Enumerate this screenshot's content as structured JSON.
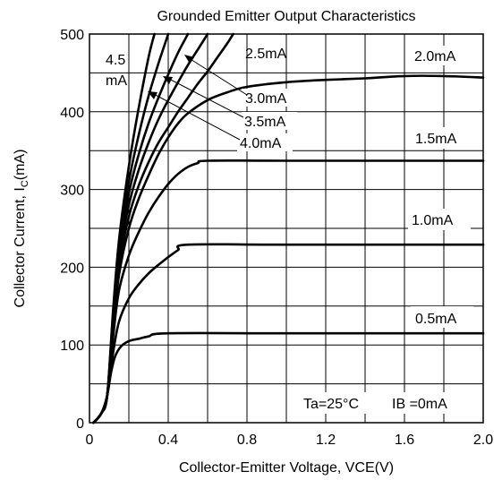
{
  "chart_data": {
    "type": "line",
    "title": "Grounded Emitter Output Characteristics",
    "xlabel": "Collector-Emitter Voltage, VCE(V)",
    "ylabel_main": "Collector Current, I",
    "ylabel_sub": "C",
    "ylabel_unit": "(mA)",
    "xlim": [
      0,
      2.0
    ],
    "ylim": [
      0,
      500
    ],
    "xticks": [
      0,
      0.4,
      0.8,
      1.2,
      1.6,
      2.0
    ],
    "xtick_labels": [
      "0",
      "0.4",
      "0.8",
      "1.2",
      "1.6",
      "2.0"
    ],
    "yticks": [
      0,
      100,
      200,
      300,
      400,
      500
    ],
    "ytick_labels": [
      "0",
      "100",
      "200",
      "300",
      "400",
      "500"
    ],
    "grid": true,
    "annotations": [
      "Ta=25°C",
      "IB =0mA"
    ],
    "series": [
      {
        "name": "0.5mA",
        "x": [
          0.02,
          0.06,
          0.09,
          0.11,
          0.13,
          0.16,
          0.2,
          0.25,
          0.3,
          0.4,
          1.0,
          2.0
        ],
        "y": [
          0,
          12,
          35,
          65,
          85,
          98,
          105,
          108,
          111,
          115,
          115,
          115
        ]
      },
      {
        "name": "1.0mA",
        "x": [
          0.02,
          0.06,
          0.09,
          0.12,
          0.15,
          0.2,
          0.25,
          0.3,
          0.35,
          0.4,
          0.45,
          0.5,
          1.0,
          2.0
        ],
        "y": [
          0,
          12,
          35,
          90,
          130,
          160,
          178,
          192,
          203,
          213,
          222,
          229,
          229,
          229
        ]
      },
      {
        "name": "1.5mA",
        "x": [
          0.02,
          0.06,
          0.09,
          0.12,
          0.15,
          0.2,
          0.25,
          0.3,
          0.35,
          0.4,
          0.45,
          0.5,
          0.55,
          0.6,
          1.0,
          2.0
        ],
        "y": [
          0,
          12,
          35,
          110,
          170,
          215,
          245,
          270,
          290,
          307,
          320,
          329,
          334,
          337,
          337,
          337
        ]
      },
      {
        "name": "2.0mA",
        "x": [
          0.02,
          0.06,
          0.09,
          0.12,
          0.15,
          0.2,
          0.25,
          0.3,
          0.35,
          0.4,
          0.45,
          0.5,
          0.6,
          0.7,
          0.8,
          1.0,
          1.2,
          1.4,
          1.6,
          1.8,
          2.0
        ],
        "y": [
          0,
          12,
          35,
          120,
          190,
          250,
          288,
          318,
          345,
          367,
          385,
          398,
          415,
          425,
          432,
          438,
          441,
          443,
          446,
          446,
          444
        ]
      },
      {
        "name": "2.5mA",
        "x": [
          0.02,
          0.06,
          0.09,
          0.12,
          0.15,
          0.2,
          0.25,
          0.3,
          0.35,
          0.4,
          0.45,
          0.5,
          0.55,
          0.6,
          0.65,
          0.7,
          0.73
        ],
        "y": [
          0,
          12,
          35,
          125,
          200,
          265,
          305,
          335,
          360,
          380,
          400,
          418,
          436,
          452,
          470,
          488,
          500
        ]
      },
      {
        "name": "3.0mA",
        "x": [
          0.02,
          0.06,
          0.09,
          0.12,
          0.15,
          0.2,
          0.25,
          0.3,
          0.35,
          0.4,
          0.45,
          0.5,
          0.55,
          0.6
        ],
        "y": [
          0,
          12,
          35,
          130,
          210,
          280,
          325,
          360,
          390,
          415,
          438,
          460,
          480,
          500
        ]
      },
      {
        "name": "3.5mA",
        "x": [
          0.02,
          0.06,
          0.09,
          0.12,
          0.15,
          0.2,
          0.25,
          0.3,
          0.35,
          0.4,
          0.45,
          0.5
        ],
        "y": [
          0,
          12,
          35,
          135,
          218,
          295,
          345,
          385,
          418,
          448,
          476,
          500
        ]
      },
      {
        "name": "4.0mA",
        "x": [
          0.02,
          0.06,
          0.09,
          0.12,
          0.15,
          0.2,
          0.25,
          0.3,
          0.35,
          0.4
        ],
        "y": [
          0,
          12,
          35,
          140,
          225,
          310,
          370,
          420,
          462,
          500
        ]
      },
      {
        "name": "4.5mA",
        "x": [
          0.02,
          0.06,
          0.09,
          0.12,
          0.15,
          0.2,
          0.25,
          0.3,
          0.33
        ],
        "y": [
          0,
          12,
          35,
          145,
          235,
          330,
          405,
          470,
          500
        ]
      }
    ],
    "curve_labels": {
      "label_4_5_line1": "4.5",
      "label_4_5_line2": "mA",
      "label_2_5": "2.5mA",
      "label_3_0": "3.0mA",
      "label_3_5": "3.5mA",
      "label_4_0": "4.0mA",
      "label_2_0": "2.0mA",
      "label_1_5": "1.5mA",
      "label_1_0": "1.0mA",
      "label_0_5": "0.5mA"
    }
  }
}
